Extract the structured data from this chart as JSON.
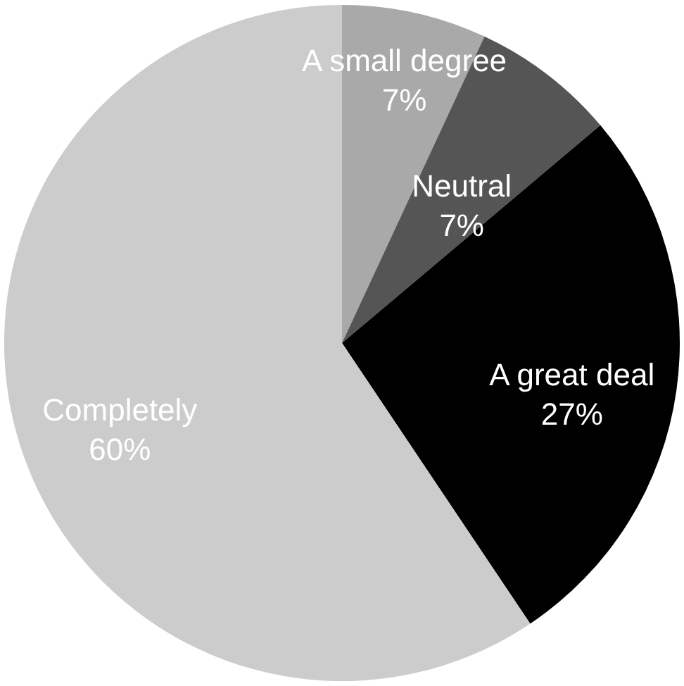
{
  "chart_data": {
    "type": "pie",
    "categories": [
      "A small degree",
      "Neutral",
      "A great deal",
      "Completely"
    ],
    "values": [
      7,
      7,
      27,
      60
    ],
    "value_labels": [
      "7%",
      "7%",
      "27%",
      "60%"
    ],
    "colors": [
      "#a9a9a9",
      "#555555",
      "#000000",
      "#cccccc"
    ]
  }
}
